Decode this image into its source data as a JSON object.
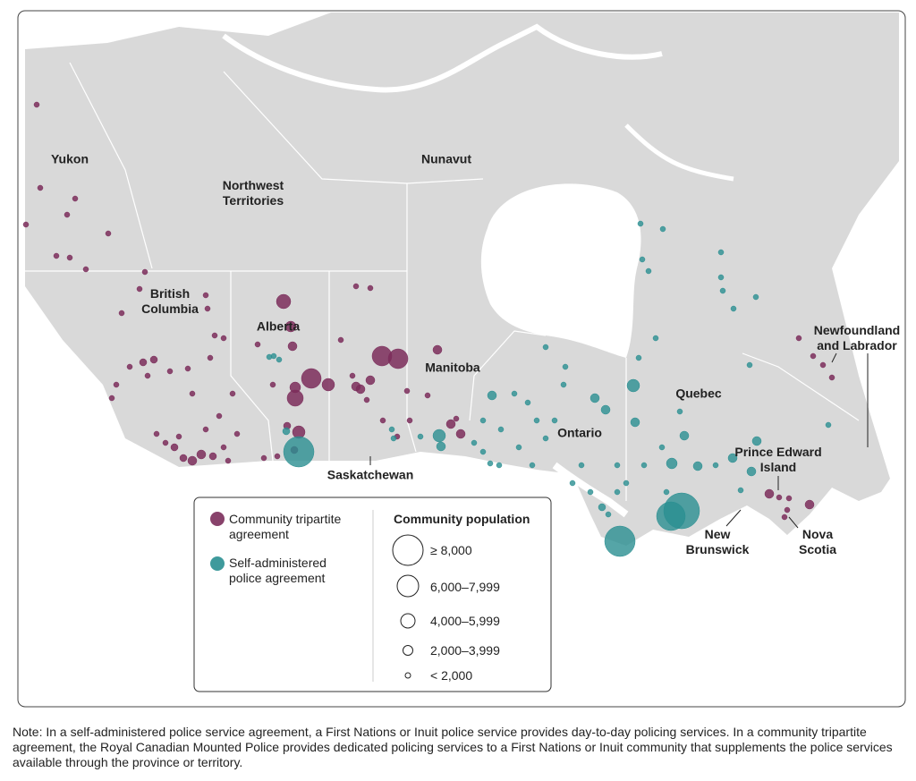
{
  "map": {
    "labels": [
      "Yukon",
      "Northwest Territories",
      "Nunavut",
      "British Columbia",
      "Alberta",
      "Saskatchewan",
      "Manitoba",
      "Ontario",
      "Quebec",
      "Newfoundland and Labrador",
      "Prince Edward Island",
      "New Brunswick",
      "Nova Scotia"
    ]
  },
  "legend": {
    "agreement_types": [
      "Community tripartite agreement",
      "Self-administered police agreement"
    ],
    "population_title": "Community population",
    "population_classes": [
      "≥ 8,000",
      "6,000–7,999",
      "4,000–5,999",
      "2,000–3,999",
      "< 2,000"
    ]
  },
  "note": "Note: In a self-administered police service agreement, a First Nations or Inuit police service provides day-to-day policing services. In a community tripartite agreement, the Royal Canadian Mounted Police provides dedicated policing services to a First Nations or Inuit community that supplements the police services available through the province or territory."
}
